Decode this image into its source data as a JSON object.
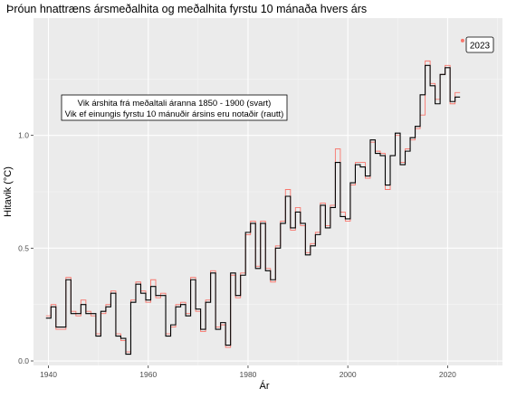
{
  "chart_data": {
    "type": "line",
    "title": "Þróun hnattræns ársmeðalhita og meðalhita fyrstu 10 mánaða hvers árs",
    "xlabel": "Ár",
    "ylabel": "Hitavik (°C)",
    "xlim": [
      1937,
      2031
    ],
    "ylim": [
      -0.02,
      1.52
    ],
    "xticks": [
      1940,
      1960,
      1980,
      2000,
      2020
    ],
    "yticks": [
      0.0,
      0.5,
      1.0
    ],
    "ytick_labels": [
      "0.0",
      "0.5",
      "1.0"
    ],
    "grid": true,
    "background": "#ebebeb",
    "annotation_lines": [
      "Vik árshita frá meðaltali áranna 1850 - 1900 (svart)",
      "Vik ef einungis fyrstu 10 mánuðir ársins eru notaðir (rautt)"
    ],
    "point_label": "2023",
    "point": {
      "x": 2023,
      "y": 1.42
    },
    "series": [
      {
        "color": "#000000",
        "x": [
          1940,
          1941,
          1942,
          1943,
          1944,
          1945,
          1946,
          1947,
          1948,
          1949,
          1950,
          1951,
          1952,
          1953,
          1954,
          1955,
          1956,
          1957,
          1958,
          1959,
          1960,
          1961,
          1962,
          1963,
          1964,
          1965,
          1966,
          1967,
          1968,
          1969,
          1970,
          1971,
          1972,
          1973,
          1974,
          1975,
          1976,
          1977,
          1978,
          1979,
          1980,
          1981,
          1982,
          1983,
          1984,
          1985,
          1986,
          1987,
          1988,
          1989,
          1990,
          1991,
          1992,
          1993,
          1994,
          1995,
          1996,
          1997,
          1998,
          1999,
          2000,
          2001,
          2002,
          2003,
          2004,
          2005,
          2006,
          2007,
          2008,
          2009,
          2010,
          2011,
          2012,
          2013,
          2014,
          2015,
          2016,
          2017,
          2018,
          2019,
          2020,
          2021,
          2022
        ],
        "values": [
          0.19,
          0.24,
          0.15,
          0.15,
          0.36,
          0.21,
          0.21,
          0.25,
          0.21,
          0.21,
          0.11,
          0.22,
          0.24,
          0.3,
          0.11,
          0.1,
          0.03,
          0.26,
          0.34,
          0.3,
          0.27,
          0.33,
          0.29,
          0.29,
          0.11,
          0.16,
          0.24,
          0.25,
          0.2,
          0.36,
          0.23,
          0.14,
          0.26,
          0.39,
          0.14,
          0.17,
          0.07,
          0.39,
          0.29,
          0.38,
          0.57,
          0.61,
          0.41,
          0.61,
          0.4,
          0.36,
          0.5,
          0.61,
          0.73,
          0.59,
          0.66,
          0.61,
          0.47,
          0.51,
          0.56,
          0.69,
          0.59,
          0.68,
          0.88,
          0.64,
          0.63,
          0.79,
          0.87,
          0.86,
          0.82,
          0.98,
          0.92,
          0.91,
          0.78,
          0.91,
          1.01,
          0.87,
          0.93,
          0.99,
          1.04,
          1.18,
          1.31,
          1.22,
          1.14,
          1.27,
          1.3,
          1.15,
          1.17
        ]
      },
      {
        "color": "#f8766d",
        "x": [
          1940,
          1941,
          1942,
          1943,
          1944,
          1945,
          1946,
          1947,
          1948,
          1949,
          1950,
          1951,
          1952,
          1953,
          1954,
          1955,
          1956,
          1957,
          1958,
          1959,
          1960,
          1961,
          1962,
          1963,
          1964,
          1965,
          1966,
          1967,
          1968,
          1969,
          1970,
          1971,
          1972,
          1973,
          1974,
          1975,
          1976,
          1977,
          1978,
          1979,
          1980,
          1981,
          1982,
          1983,
          1984,
          1985,
          1986,
          1987,
          1988,
          1989,
          1990,
          1991,
          1992,
          1993,
          1994,
          1995,
          1996,
          1997,
          1998,
          1999,
          2000,
          2001,
          2002,
          2003,
          2004,
          2005,
          2006,
          2007,
          2008,
          2009,
          2010,
          2011,
          2012,
          2013,
          2014,
          2015,
          2016,
          2017,
          2018,
          2019,
          2020,
          2021,
          2022
        ],
        "values": [
          0.2,
          0.25,
          0.14,
          0.14,
          0.37,
          0.22,
          0.2,
          0.27,
          0.22,
          0.2,
          0.12,
          0.21,
          0.25,
          0.31,
          0.12,
          0.09,
          0.04,
          0.27,
          0.35,
          0.31,
          0.26,
          0.36,
          0.28,
          0.3,
          0.12,
          0.15,
          0.25,
          0.26,
          0.21,
          0.37,
          0.22,
          0.13,
          0.27,
          0.4,
          0.15,
          0.16,
          0.06,
          0.38,
          0.28,
          0.39,
          0.56,
          0.62,
          0.42,
          0.62,
          0.41,
          0.35,
          0.51,
          0.62,
          0.76,
          0.58,
          0.68,
          0.6,
          0.48,
          0.52,
          0.57,
          0.7,
          0.6,
          0.69,
          0.94,
          0.66,
          0.62,
          0.78,
          0.88,
          0.88,
          0.81,
          0.97,
          0.93,
          0.92,
          0.76,
          0.91,
          1.0,
          0.88,
          0.94,
          0.98,
          1.03,
          1.09,
          1.33,
          1.23,
          1.16,
          1.27,
          1.31,
          1.14,
          1.19
        ]
      }
    ]
  }
}
